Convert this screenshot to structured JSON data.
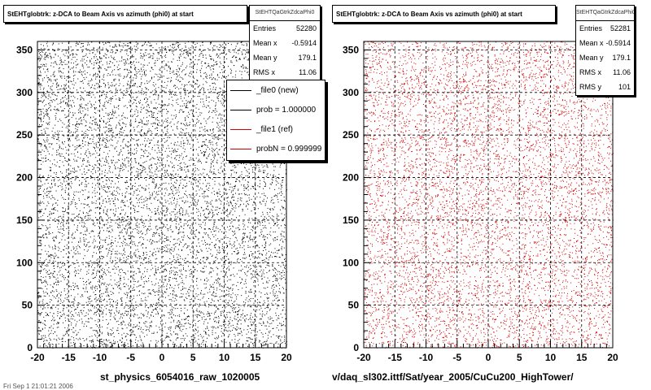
{
  "left_pad": {
    "title": "StEHTglobtrk: z-DCA to Beam Axis vs azimuth (phi0) at start",
    "stats": {
      "name": "StEHTQaGtrkZdcaPhi0",
      "rows": [
        {
          "label": "Entries",
          "value": "52280"
        },
        {
          "label": "Mean x",
          "value": "-0.5914"
        },
        {
          "label": "Mean y",
          "value": "179.1"
        },
        {
          "label": "RMS x",
          "value": "11.06"
        }
      ]
    },
    "legend": [
      {
        "label": "_file0 (new)",
        "color": "#000000"
      },
      {
        "label": "prob = 1.000000",
        "color": "#000000"
      },
      {
        "label": "_file1 (ref)",
        "color": "#d00000"
      },
      {
        "label": "probN = 0.999999",
        "color": "#d00000"
      }
    ],
    "footer": "st_physics_6054016_raw_1020005",
    "corner_date": "Fri Sep 1 21:01:21 2006"
  },
  "right_pad": {
    "title": "StEHTglobtrk: z-DCA to Beam Axis vs azimuth (phi0) at start",
    "stats": {
      "name": "StEHTQaGtrkZdcaPhi0",
      "rows": [
        {
          "label": "Entries",
          "value": "52281"
        },
        {
          "label": "Mean x",
          "value": "-0.5914"
        },
        {
          "label": "Mean y",
          "value": "179.1"
        },
        {
          "label": "RMS x",
          "value": "11.06"
        },
        {
          "label": "RMS y",
          "value": "101"
        }
      ]
    },
    "footer": "v/daq_sl302.ittf/Sat/year_2005/CuCu200_HighTower/"
  },
  "chart_data": [
    {
      "type": "scatter",
      "title": "StEHTglobtrk: z-DCA to Beam Axis vs azimuth (phi0) at start",
      "xlim": [
        -20,
        20
      ],
      "ylim": [
        0,
        360
      ],
      "xticks": [
        -20,
        -15,
        -10,
        -5,
        0,
        5,
        10,
        15,
        20
      ],
      "yticks": [
        0,
        50,
        100,
        150,
        200,
        250,
        300,
        350
      ],
      "grid": true,
      "marker_color": "#000000",
      "entries": 52280,
      "mean_x": -0.5914,
      "mean_y": 179.1,
      "rms_x": 11.06,
      "legend_position": "top-right",
      "series": [
        {
          "name": "_file0 (new)"
        }
      ]
    },
    {
      "type": "scatter",
      "title": "StEHTglobtrk: z-DCA to Beam Axis vs azimuth (phi0) at start",
      "xlim": [
        -20,
        20
      ],
      "ylim": [
        0,
        360
      ],
      "xticks": [
        -20,
        -15,
        -10,
        -5,
        0,
        5,
        10,
        15,
        20
      ],
      "yticks": [
        0,
        50,
        100,
        150,
        200,
        250,
        300,
        350
      ],
      "grid": true,
      "marker_color": "#d00000",
      "entries": 52281,
      "mean_x": -0.5914,
      "mean_y": 179.1,
      "rms_x": 11.06,
      "rms_y": 101,
      "series": [
        {
          "name": "_file1 (ref)"
        }
      ]
    }
  ]
}
